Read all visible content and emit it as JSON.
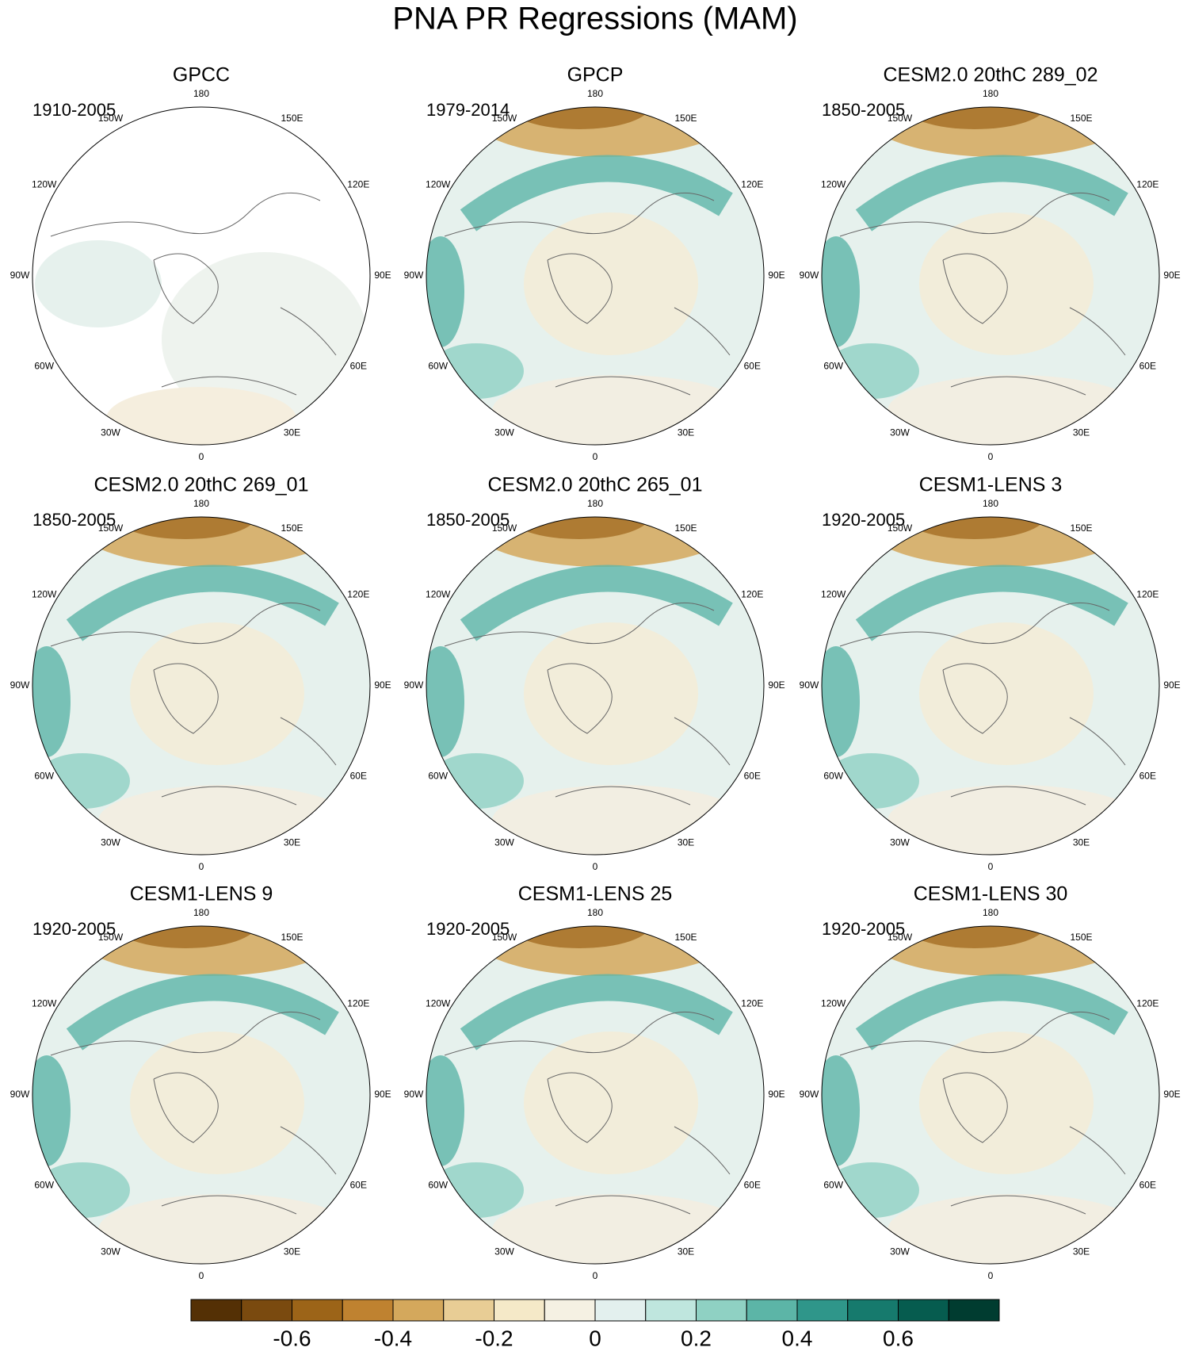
{
  "title": "PNA PR Regressions (MAM)",
  "lon_labels": [
    "180",
    "150E",
    "120E",
    "90E",
    "60E",
    "30E",
    "0",
    "30W",
    "60W",
    "90W",
    "120W",
    "150W"
  ],
  "panels": [
    {
      "title": "GPCC",
      "period": "1910-2005"
    },
    {
      "title": "GPCP",
      "period": "1979-2014"
    },
    {
      "title": "CESM2.0 20thC 289_02",
      "period": "1850-2005"
    },
    {
      "title": "CESM2.0 20thC 269_01",
      "period": "1850-2005"
    },
    {
      "title": "CESM2.0 20thC 265_01",
      "period": "1850-2005"
    },
    {
      "title": "CESM1-LENS 3",
      "period": "1920-2005"
    },
    {
      "title": "CESM1-LENS 9",
      "period": "1920-2005"
    },
    {
      "title": "CESM1-LENS 25",
      "period": "1920-2005"
    },
    {
      "title": "CESM1-LENS 30",
      "period": "1920-2005"
    }
  ],
  "colorbar": {
    "range": [
      -0.8,
      0.8
    ],
    "colors": [
      "#543005",
      "#7a4a0f",
      "#9c6418",
      "#bf8230",
      "#d4a85c",
      "#e8cd95",
      "#f5e9c8",
      "#f5f1e3",
      "#e3f0ee",
      "#bfe6de",
      "#8fd1c3",
      "#5cb5a7",
      "#2f968a",
      "#167a6d",
      "#065c4f",
      "#003c30"
    ],
    "ticks": [
      -0.6,
      -0.4,
      -0.2,
      0,
      0.2,
      0.4,
      0.6
    ]
  }
}
